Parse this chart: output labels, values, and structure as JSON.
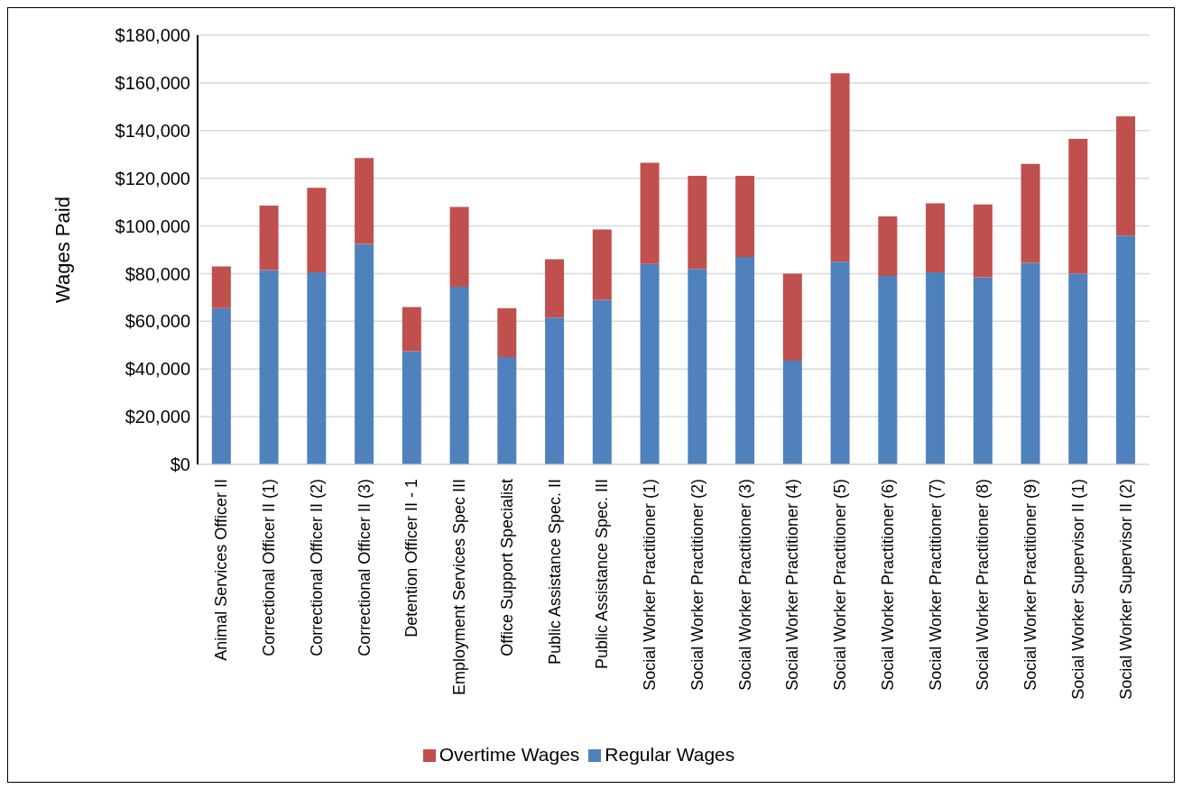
{
  "chart_data": {
    "type": "bar",
    "stacked": true,
    "ylabel": "Wages Paid",
    "categories": [
      "Animal Services Officer II",
      "Correctional Officer II (1)",
      "Correctional Officer II (2)",
      "Correctional Officer II (3)",
      "Detention Officer II - 1",
      "Employment Services Spec III",
      "Office Support Specialist",
      "Public Assistance Spec. II",
      "Public Assistance Spec. III",
      "Social Worker Practitioner (1)",
      "Social Worker Practitioner (2)",
      "Social Worker Practitioner (3)",
      "Social Worker Practitioner (4)",
      "Social Worker Practitioner (5)",
      "Social Worker Practitioner (6)",
      "Social Worker Practitioner (7)",
      "Social Worker Practitioner (8)",
      "Social Worker Practitioner (9)",
      "Social Worker Supervisor II (1)",
      "Social Worker Supervisor II (2)"
    ],
    "series": [
      {
        "name": "Regular Wages",
        "color": "#4f81bd",
        "values": [
          65500,
          81500,
          80500,
          92500,
          47500,
          74500,
          45000,
          61500,
          69000,
          84000,
          82000,
          87000,
          43500,
          85000,
          79000,
          80500,
          78500,
          84500,
          80000,
          96000
        ]
      },
      {
        "name": "Overtime Wages",
        "color": "#c0504d",
        "values": [
          17500,
          27000,
          35500,
          36000,
          18500,
          33500,
          20500,
          24500,
          29500,
          42500,
          39000,
          34000,
          36500,
          79000,
          25000,
          29000,
          30500,
          41500,
          56500,
          50000
        ]
      }
    ],
    "ylim": [
      0,
      180000
    ],
    "yticks": [
      {
        "value": 0,
        "label": "$0"
      },
      {
        "value": 20000,
        "label": "$20,000"
      },
      {
        "value": 40000,
        "label": "$40,000"
      },
      {
        "value": 60000,
        "label": "$60,000"
      },
      {
        "value": 80000,
        "label": "$80,000"
      },
      {
        "value": 100000,
        "label": "$100,000"
      },
      {
        "value": 120000,
        "label": "$120,000"
      },
      {
        "value": 140000,
        "label": "$140,000"
      },
      {
        "value": 160000,
        "label": "$160,000"
      },
      {
        "value": 180000,
        "label": "$180,000"
      }
    ],
    "grid": "y",
    "legend": "bottom"
  }
}
